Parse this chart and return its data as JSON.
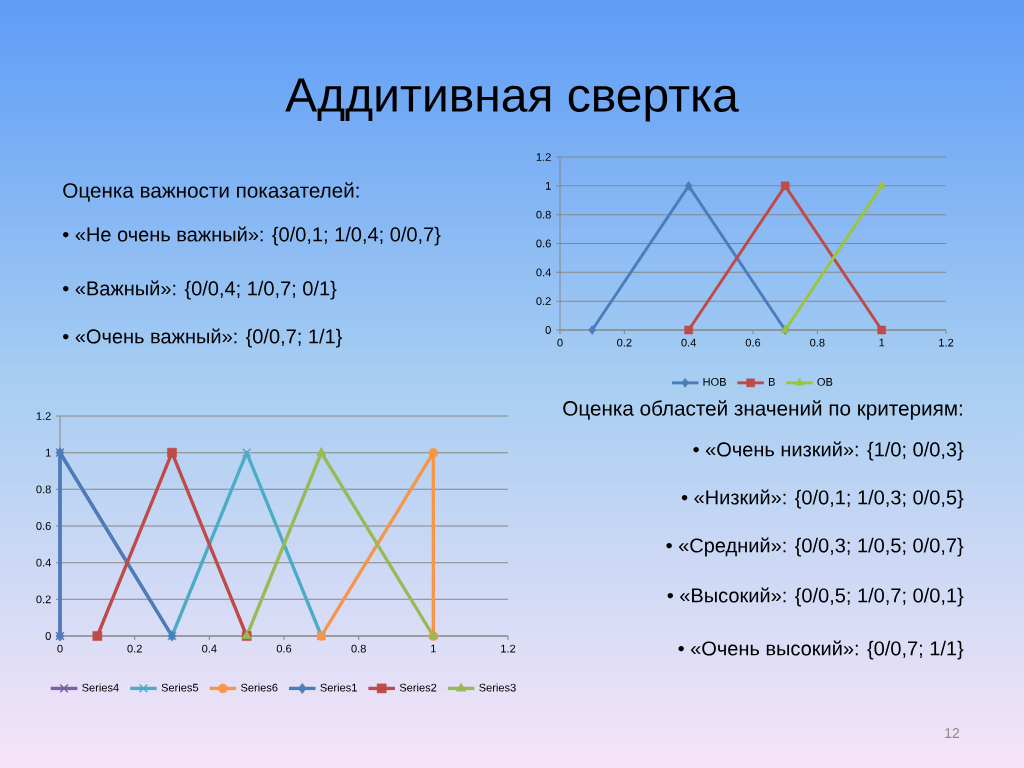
{
  "chart_data": [
    {
      "type": "other",
      "title": "Аддитивная свертка",
      "subtitle": "Оценка важности показателей:",
      "annotations": [
        "• «Не очень важный»: {0/0,1; 1/0,4; 0/0,7}",
        "• «Важный»: {0/0,4; 1/0,7; 0/1}",
        "• «Очень важный»: {0/0,7; 1/1}"
      ]
    },
    {
      "type": "line",
      "xlim": [
        0,
        1.2
      ],
      "xticks": [
        0,
        0.2,
        0.4,
        0.6,
        0.8,
        1,
        1.2
      ],
      "ylim": [
        0,
        1.2
      ],
      "yticks": [
        0,
        0.2,
        0.4,
        0.6,
        0.8,
        1,
        1.2
      ],
      "grid": "y",
      "legend": "bottom",
      "series": [
        {
          "name": "НОВ",
          "color": "#4a7ebb",
          "marker": "diamond",
          "x": [
            0.1,
            0.4,
            0.7
          ],
          "values": [
            0,
            1,
            0
          ]
        },
        {
          "name": "В",
          "color": "#be4b48",
          "marker": "square",
          "x": [
            0.4,
            0.7,
            1
          ],
          "values": [
            0,
            1,
            0
          ]
        },
        {
          "name": "ОВ",
          "color": "#9bc53d",
          "marker": "triangle",
          "x": [
            0.7,
            1
          ],
          "values": [
            0,
            1
          ]
        }
      ]
    },
    {
      "type": "line",
      "xlim": [
        0,
        1.2
      ],
      "xticks": [
        0,
        0.2,
        0.4,
        0.6,
        0.8,
        1,
        1.2
      ],
      "ylim": [
        0,
        1.2
      ],
      "yticks": [
        0,
        0.2,
        0.4,
        0.6,
        0.8,
        1,
        1.2
      ],
      "grid": "y",
      "legend": "bottom",
      "series": [
        {
          "name": "Series4",
          "color": "#7d60a0",
          "marker": "cross",
          "x": [
            0,
            0,
            0.3
          ],
          "values": [
            0,
            1,
            0
          ]
        },
        {
          "name": "Series5",
          "color": "#4bacc6",
          "marker": "cross",
          "x": [
            0.3,
            0.5,
            0.7
          ],
          "values": [
            0,
            1,
            0
          ]
        },
        {
          "name": "Series6",
          "color": "#f79646",
          "marker": "circle",
          "x": [
            0.7,
            1,
            1
          ],
          "values": [
            0,
            1,
            0
          ]
        },
        {
          "name": "Series1",
          "color": "#4a7ebb",
          "marker": "diamond",
          "x": [
            0,
            0,
            0.3
          ],
          "values": [
            0,
            1,
            0
          ]
        },
        {
          "name": "Series2",
          "color": "#be4b48",
          "marker": "square",
          "x": [
            0.1,
            0.3,
            0.5
          ],
          "values": [
            0,
            1,
            0
          ]
        },
        {
          "name": "Series3",
          "color": "#98b954",
          "marker": "triangle",
          "x": [
            0.5,
            0.7,
            1
          ],
          "values": [
            0,
            1,
            0
          ]
        }
      ]
    },
    {
      "type": "other",
      "title": "Оценка областей значений по критериям:",
      "annotations": [
        "• «Очень низкий»: {1/0; 0/0,3}",
        "• «Низкий»: {0/0,1; 1/0,3; 0/0,5}",
        "• «Средний»: {0/0,3; 1/0,5; 0/0,7}",
        "• «Высокий»: {0/0,5; 1/0,7; 0/0,1}",
        "• «Очень высокий»: {0/0,7; 1/1}",
        "12"
      ]
    }
  ]
}
